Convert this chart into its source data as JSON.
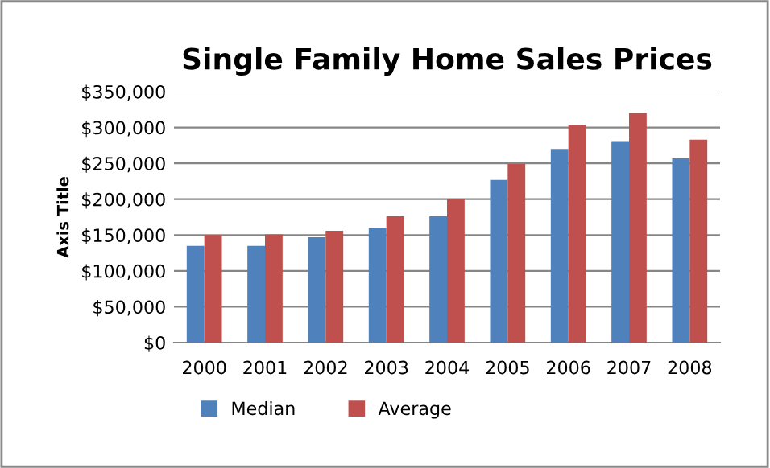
{
  "chart_data": {
    "type": "bar",
    "title": "Single Family Home Sales Prices",
    "ylabel": "Axis Title",
    "categories": [
      "2000",
      "2001",
      "2002",
      "2003",
      "2004",
      "2005",
      "2006",
      "2007",
      "2008"
    ],
    "series": [
      {
        "name": "Median",
        "color": "#4f81bd",
        "values": [
          135000,
          135000,
          147000,
          160000,
          176000,
          227000,
          270000,
          281000,
          257000
        ]
      },
      {
        "name": "Average",
        "color": "#c0504d",
        "values": [
          150000,
          151000,
          156000,
          176000,
          200000,
          249000,
          304000,
          320000,
          283000
        ]
      }
    ],
    "ylim": [
      0,
      350000
    ],
    "yticks": [
      {
        "value": 0,
        "label": "$0"
      },
      {
        "value": 50000,
        "label": "$50,000"
      },
      {
        "value": 100000,
        "label": "$100,000"
      },
      {
        "value": 150000,
        "label": "$150,000"
      },
      {
        "value": 200000,
        "label": "$200,000"
      },
      {
        "value": 250000,
        "label": "$250,000"
      },
      {
        "value": 300000,
        "label": "$300,000"
      },
      {
        "value": 350000,
        "label": "$350,000"
      }
    ],
    "grid": "y",
    "legend": "bottom"
  }
}
